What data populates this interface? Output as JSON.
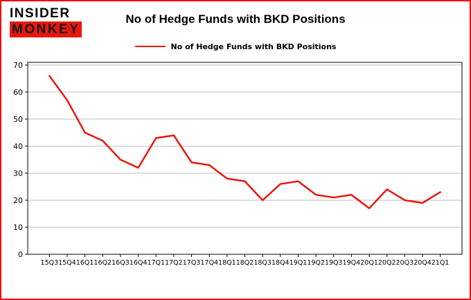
{
  "logo": {
    "line1": "INSIDER",
    "line2": "MONKEY"
  },
  "title": "No of Hedge Funds with BKD Positions",
  "legend": {
    "label": "No of Hedge Funds with BKD Positions"
  },
  "colors": {
    "accent_red": "#e8170d",
    "frame_border": "#f00d0d",
    "grid": "#bdbdbd",
    "axis": "#000000"
  },
  "chart_data": {
    "type": "line",
    "title": "No of Hedge Funds with BKD Positions",
    "xlabel": "",
    "ylabel": "",
    "categories": [
      "15Q3",
      "15Q4",
      "16Q1",
      "16Q2",
      "16Q3",
      "16Q4",
      "17Q1",
      "17Q2",
      "17Q3",
      "17Q4",
      "18Q1",
      "18Q2",
      "18Q3",
      "18Q4",
      "19Q1",
      "19Q2",
      "19Q3",
      "19Q4",
      "20Q1",
      "20Q2",
      "20Q3",
      "20Q4",
      "21Q1"
    ],
    "series": [
      {
        "name": "No of Hedge Funds with BKD Positions",
        "color": "#e8170d",
        "values": [
          66,
          57,
          45,
          42,
          35,
          32,
          43,
          44,
          34,
          33,
          28,
          27,
          20,
          26,
          27,
          22,
          21,
          22,
          17,
          24,
          20,
          19,
          23
        ]
      }
    ],
    "ylim": [
      0,
      70
    ],
    "yticks": [
      0,
      10,
      20,
      30,
      40,
      50,
      60,
      70
    ],
    "grid": true,
    "legend_position": "top"
  }
}
